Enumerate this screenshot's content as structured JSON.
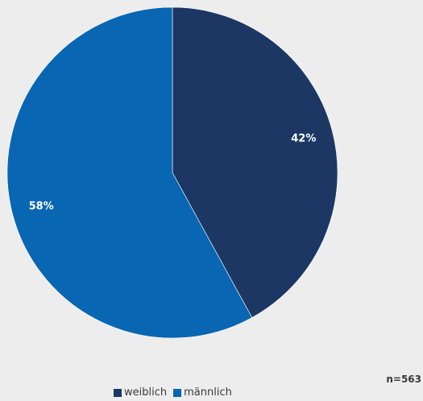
{
  "chart_data": {
    "type": "pie",
    "slices": [
      {
        "name": "weiblich",
        "value": 42,
        "label": "42%",
        "color": "#1c3764"
      },
      {
        "name": "männlich",
        "value": 58,
        "label": "58%",
        "color": "#0866b2"
      }
    ],
    "legend_position": "bottom",
    "note": "n=563"
  }
}
